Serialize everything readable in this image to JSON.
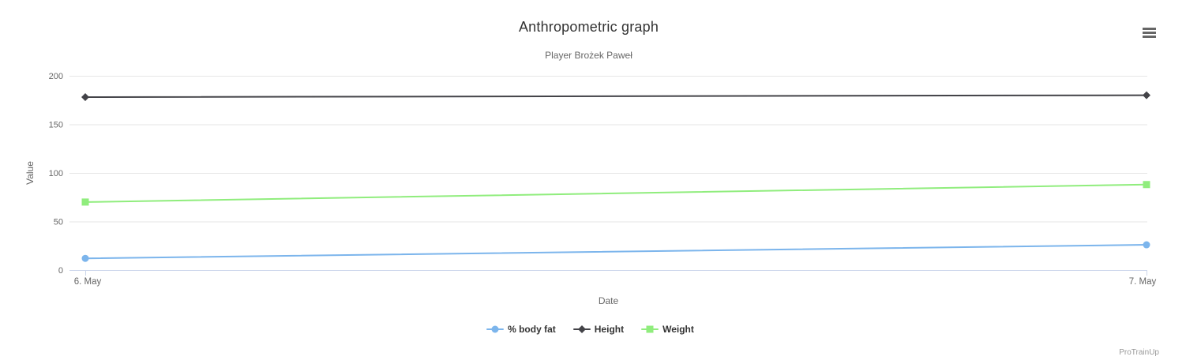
{
  "chart": {
    "title": "Anthropometric graph",
    "subtitle": "Player Brożek Paweł",
    "credits": "ProTrainUp"
  },
  "chart_data": {
    "type": "line",
    "x": [
      "6. May",
      "7. May"
    ],
    "series": [
      {
        "name": "% body fat",
        "marker": "circle",
        "color": "#7cb5ec",
        "values": [
          12,
          26
        ]
      },
      {
        "name": "Height",
        "marker": "diamond",
        "color": "#434348",
        "values": [
          178,
          180
        ]
      },
      {
        "name": "Weight",
        "marker": "square",
        "color": "#90ed7d",
        "values": [
          70,
          88
        ]
      }
    ],
    "xlabel": "Date",
    "ylabel": "Value",
    "ylim": [
      0,
      200
    ],
    "yticks": [
      0,
      50,
      100,
      150,
      200
    ],
    "grid": true,
    "legend_position": "bottom"
  },
  "colors": {
    "background": "#ffffff",
    "gridline": "#e6e6e6",
    "axis_line": "#ccd6eb",
    "axis_label": "#666666",
    "title": "#333333",
    "subtitle": "#666666",
    "legend_text": "#333333",
    "credits": "#999999",
    "menu_icon": "#666666"
  },
  "icons": {
    "context_menu": "hamburger-menu-icon"
  }
}
